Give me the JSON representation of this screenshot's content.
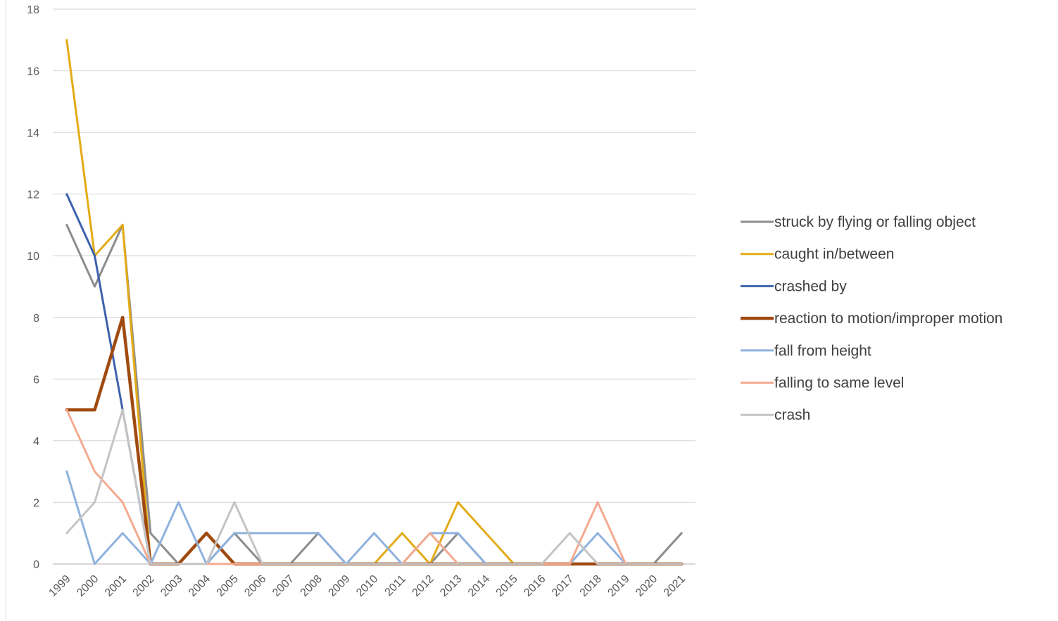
{
  "chart_data": {
    "type": "line",
    "title": "",
    "xlabel": "",
    "ylabel": "",
    "ylim": [
      0,
      18
    ],
    "y_tick_step": 2,
    "grid": true,
    "legend_position": "right",
    "categories": [
      "1999",
      "2000",
      "2001",
      "2002",
      "2003",
      "2004",
      "2005",
      "2006",
      "2007",
      "2008",
      "2009",
      "2010",
      "2011",
      "2012",
      "2013",
      "2014",
      "2015",
      "2016",
      "2017",
      "2018",
      "2019",
      "2020",
      "2021"
    ],
    "series": [
      {
        "name": "struck by flying or falling object",
        "color": "#8c8c8c",
        "width": 3,
        "values": [
          11,
          9,
          11,
          1,
          0,
          0,
          1,
          0,
          0,
          1,
          0,
          0,
          0,
          0,
          1,
          0,
          0,
          0,
          0,
          0,
          0,
          0,
          1
        ]
      },
      {
        "name": "caught in/between",
        "color": "#e3ab16",
        "width": 3,
        "values": [
          17,
          10,
          11,
          0,
          0,
          0,
          0,
          0,
          0,
          0,
          0,
          0,
          1,
          0,
          2,
          1,
          0,
          0,
          0,
          0,
          0,
          0,
          0
        ]
      },
      {
        "name": "crashed by",
        "color": "#3d62ad",
        "width": 3,
        "values": [
          12,
          10,
          5,
          0,
          0,
          0,
          0,
          0,
          0,
          0,
          0,
          0,
          0,
          0,
          0,
          0,
          0,
          0,
          0,
          0,
          0,
          0,
          0
        ]
      },
      {
        "name": "reaction to motion/improper motion",
        "color": "#a04a10",
        "width": 4.5,
        "values": [
          5,
          5,
          8,
          0,
          0,
          1,
          0,
          0,
          0,
          0,
          0,
          0,
          0,
          0,
          0,
          0,
          0,
          0,
          0,
          0,
          0,
          0,
          0
        ]
      },
      {
        "name": "fall from height",
        "color": "#8fb2de",
        "width": 3,
        "values": [
          3,
          0,
          1,
          0,
          2,
          0,
          1,
          1,
          1,
          1,
          0,
          1,
          0,
          1,
          1,
          0,
          0,
          0,
          0,
          1,
          0,
          0,
          0
        ]
      },
      {
        "name": "falling to same level",
        "color": "#f4aa90",
        "width": 3,
        "values": [
          5,
          3,
          2,
          0,
          0,
          0,
          0,
          0,
          0,
          0,
          0,
          0,
          0,
          1,
          0,
          0,
          0,
          0,
          0,
          2,
          0,
          0,
          0
        ]
      },
      {
        "name": "crash",
        "color": "#c4c4c4",
        "width": 3,
        "values": [
          1,
          2,
          5,
          0,
          0,
          0,
          2,
          0,
          0,
          0,
          0,
          0,
          0,
          0,
          0,
          0,
          0,
          0,
          1,
          0,
          0,
          0,
          0
        ]
      }
    ],
    "y_ticks": [
      "0",
      "2",
      "4",
      "6",
      "8",
      "10",
      "12",
      "14",
      "16",
      "18"
    ]
  }
}
